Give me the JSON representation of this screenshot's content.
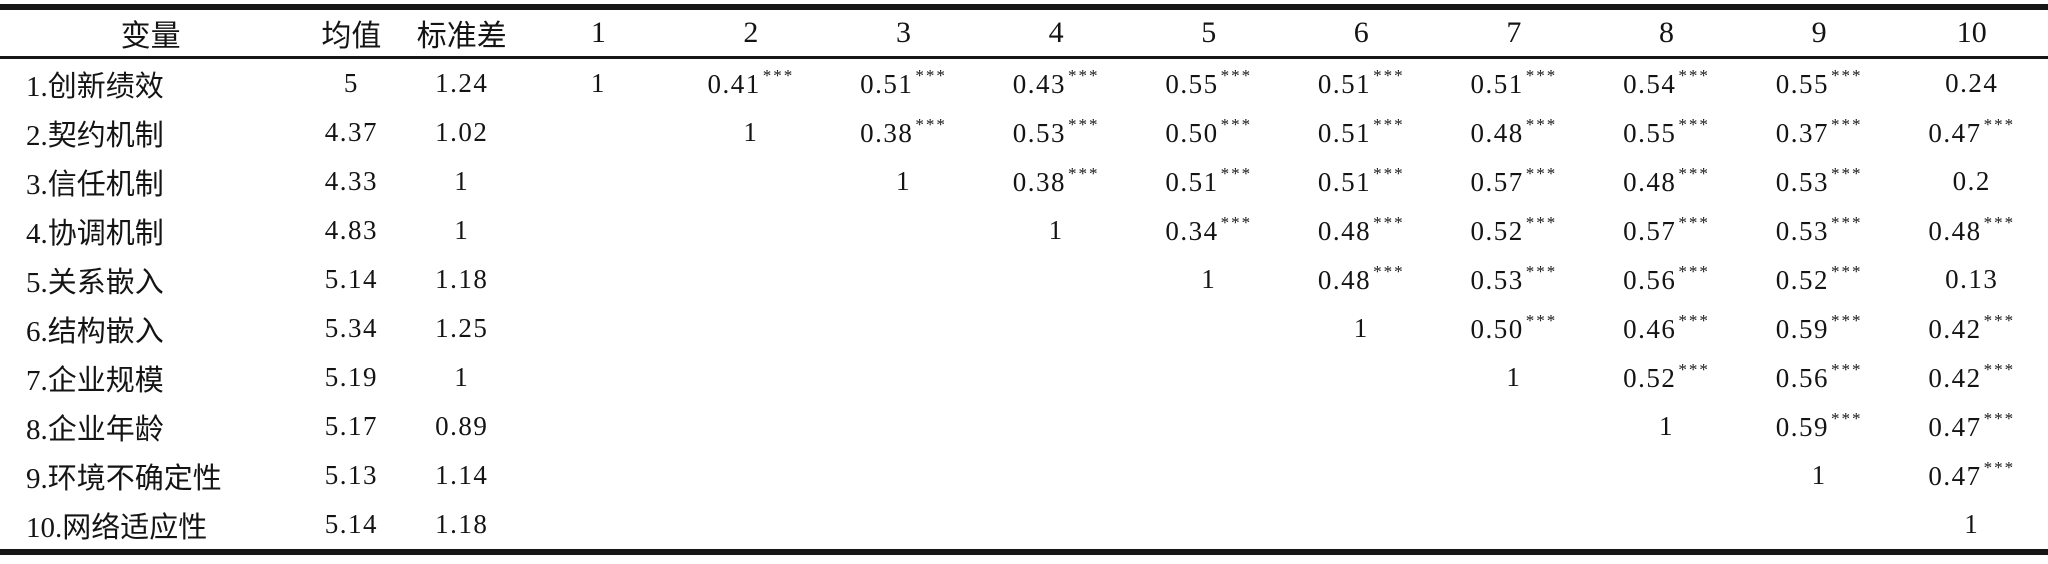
{
  "table": {
    "headers": [
      "变量",
      "均值",
      "标准差",
      "1",
      "2",
      "3",
      "4",
      "5",
      "6",
      "7",
      "8",
      "9",
      "10"
    ],
    "significance_marker": "***",
    "rows": [
      {
        "variable": "1.创新绩效",
        "mean": "5",
        "sd": "1.24",
        "corr": [
          {
            "v": "1",
            "sig": ""
          },
          {
            "v": "0.41",
            "sig": "***"
          },
          {
            "v": "0.51",
            "sig": "***"
          },
          {
            "v": "0.43",
            "sig": "***"
          },
          {
            "v": "0.55",
            "sig": "***"
          },
          {
            "v": "0.51",
            "sig": "***"
          },
          {
            "v": "0.51",
            "sig": "***"
          },
          {
            "v": "0.54",
            "sig": "***"
          },
          {
            "v": "0.55",
            "sig": "***"
          },
          {
            "v": "0.24",
            "sig": ""
          }
        ]
      },
      {
        "variable": "2.契约机制",
        "mean": "4.37",
        "sd": "1.02",
        "corr": [
          {
            "v": "",
            "sig": ""
          },
          {
            "v": "1",
            "sig": ""
          },
          {
            "v": "0.38",
            "sig": "***"
          },
          {
            "v": "0.53",
            "sig": "***"
          },
          {
            "v": "0.50",
            "sig": "***"
          },
          {
            "v": "0.51",
            "sig": "***"
          },
          {
            "v": "0.48",
            "sig": "***"
          },
          {
            "v": "0.55",
            "sig": "***"
          },
          {
            "v": "0.37",
            "sig": "***"
          },
          {
            "v": "0.47",
            "sig": "***"
          }
        ]
      },
      {
        "variable": "3.信任机制",
        "mean": "4.33",
        "sd": "1",
        "corr": [
          {
            "v": "",
            "sig": ""
          },
          {
            "v": "",
            "sig": ""
          },
          {
            "v": "1",
            "sig": ""
          },
          {
            "v": "0.38",
            "sig": "***"
          },
          {
            "v": "0.51",
            "sig": "***"
          },
          {
            "v": "0.51",
            "sig": "***"
          },
          {
            "v": "0.57",
            "sig": "***"
          },
          {
            "v": "0.48",
            "sig": "***"
          },
          {
            "v": "0.53",
            "sig": "***"
          },
          {
            "v": "0.2",
            "sig": ""
          }
        ]
      },
      {
        "variable": "4.协调机制",
        "mean": "4.83",
        "sd": "1",
        "corr": [
          {
            "v": "",
            "sig": ""
          },
          {
            "v": "",
            "sig": ""
          },
          {
            "v": "",
            "sig": ""
          },
          {
            "v": "1",
            "sig": ""
          },
          {
            "v": "0.34",
            "sig": "***"
          },
          {
            "v": "0.48",
            "sig": "***"
          },
          {
            "v": "0.52",
            "sig": "***"
          },
          {
            "v": "0.57",
            "sig": "***"
          },
          {
            "v": "0.53",
            "sig": "***"
          },
          {
            "v": "0.48",
            "sig": "***"
          }
        ]
      },
      {
        "variable": "5.关系嵌入",
        "mean": "5.14",
        "sd": "1.18",
        "corr": [
          {
            "v": "",
            "sig": ""
          },
          {
            "v": "",
            "sig": ""
          },
          {
            "v": "",
            "sig": ""
          },
          {
            "v": "",
            "sig": ""
          },
          {
            "v": "1",
            "sig": ""
          },
          {
            "v": "0.48",
            "sig": "***"
          },
          {
            "v": "0.53",
            "sig": "***"
          },
          {
            "v": "0.56",
            "sig": "***"
          },
          {
            "v": "0.52",
            "sig": "***"
          },
          {
            "v": "0.13",
            "sig": ""
          }
        ]
      },
      {
        "variable": "6.结构嵌入",
        "mean": "5.34",
        "sd": "1.25",
        "corr": [
          {
            "v": "",
            "sig": ""
          },
          {
            "v": "",
            "sig": ""
          },
          {
            "v": "",
            "sig": ""
          },
          {
            "v": "",
            "sig": ""
          },
          {
            "v": "",
            "sig": ""
          },
          {
            "v": "1",
            "sig": ""
          },
          {
            "v": "0.50",
            "sig": "***"
          },
          {
            "v": "0.46",
            "sig": "***"
          },
          {
            "v": "0.59",
            "sig": "***"
          },
          {
            "v": "0.42",
            "sig": "***"
          }
        ]
      },
      {
        "variable": "7.企业规模",
        "mean": "5.19",
        "sd": "1",
        "corr": [
          {
            "v": "",
            "sig": ""
          },
          {
            "v": "",
            "sig": ""
          },
          {
            "v": "",
            "sig": ""
          },
          {
            "v": "",
            "sig": ""
          },
          {
            "v": "",
            "sig": ""
          },
          {
            "v": "",
            "sig": ""
          },
          {
            "v": "1",
            "sig": ""
          },
          {
            "v": "0.52",
            "sig": "***"
          },
          {
            "v": "0.56",
            "sig": "***"
          },
          {
            "v": "0.42",
            "sig": "***"
          }
        ]
      },
      {
        "variable": "8.企业年龄",
        "mean": "5.17",
        "sd": "0.89",
        "corr": [
          {
            "v": "",
            "sig": ""
          },
          {
            "v": "",
            "sig": ""
          },
          {
            "v": "",
            "sig": ""
          },
          {
            "v": "",
            "sig": ""
          },
          {
            "v": "",
            "sig": ""
          },
          {
            "v": "",
            "sig": ""
          },
          {
            "v": "",
            "sig": ""
          },
          {
            "v": "1",
            "sig": ""
          },
          {
            "v": "0.59",
            "sig": "***"
          },
          {
            "v": "0.47",
            "sig": "***"
          }
        ]
      },
      {
        "variable": "9.环境不确定性",
        "mean": "5.13",
        "sd": "1.14",
        "corr": [
          {
            "v": "",
            "sig": ""
          },
          {
            "v": "",
            "sig": ""
          },
          {
            "v": "",
            "sig": ""
          },
          {
            "v": "",
            "sig": ""
          },
          {
            "v": "",
            "sig": ""
          },
          {
            "v": "",
            "sig": ""
          },
          {
            "v": "",
            "sig": ""
          },
          {
            "v": "",
            "sig": ""
          },
          {
            "v": "1",
            "sig": ""
          },
          {
            "v": "0.47",
            "sig": "***"
          }
        ]
      },
      {
        "variable": "10.网络适应性",
        "mean": "5.14",
        "sd": "1.18",
        "corr": [
          {
            "v": "",
            "sig": ""
          },
          {
            "v": "",
            "sig": ""
          },
          {
            "v": "",
            "sig": ""
          },
          {
            "v": "",
            "sig": ""
          },
          {
            "v": "",
            "sig": ""
          },
          {
            "v": "",
            "sig": ""
          },
          {
            "v": "",
            "sig": ""
          },
          {
            "v": "",
            "sig": ""
          },
          {
            "v": "",
            "sig": ""
          },
          {
            "v": "1",
            "sig": ""
          }
        ]
      }
    ]
  }
}
